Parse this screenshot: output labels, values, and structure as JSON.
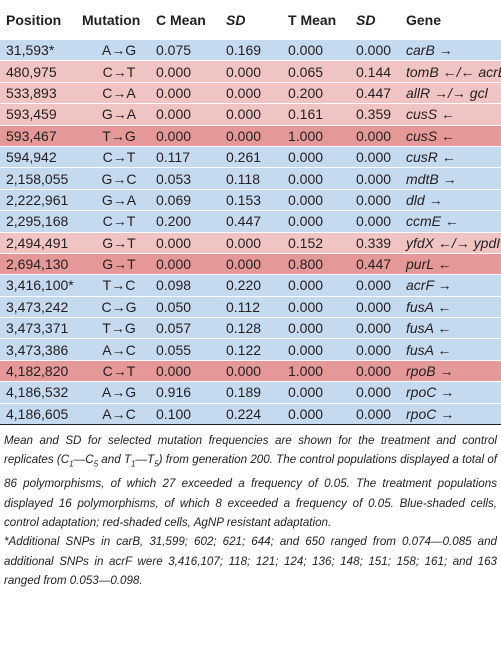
{
  "headers": [
    "Position",
    "Mutation",
    "C Mean",
    "SD",
    "T Mean",
    "SD",
    "Gene"
  ],
  "rows": [
    {
      "shade": "blue",
      "position": "31,593*",
      "mutation": "A→G",
      "c_mean": "0.075",
      "c_sd": "0.169",
      "t_mean": "0.000",
      "t_sd": "0.000",
      "gene": "carB →"
    },
    {
      "shade": "pink",
      "position": "480,975",
      "mutation": "C→T",
      "c_mean": "0.000",
      "c_sd": "0.000",
      "t_mean": "0.065",
      "t_sd": "0.144",
      "gene": "tomB ←/← acrB"
    },
    {
      "shade": "pink",
      "position": "533,893",
      "mutation": "C→A",
      "c_mean": "0.000",
      "c_sd": "0.000",
      "t_mean": "0.200",
      "t_sd": "0.447",
      "gene": "allR →/→ gcl"
    },
    {
      "shade": "pink",
      "position": "593,459",
      "mutation": "G→A",
      "c_mean": "0.000",
      "c_sd": "0.000",
      "t_mean": "0.161",
      "t_sd": "0.359",
      "gene": "cusS ←"
    },
    {
      "shade": "red",
      "position": "593,467",
      "mutation": "T→G",
      "c_mean": "0.000",
      "c_sd": "0.000",
      "t_mean": "1.000",
      "t_sd": "0.000",
      "gene": "cusS ←"
    },
    {
      "shade": "blue",
      "position": "594,942",
      "mutation": "C→T",
      "c_mean": "0.117",
      "c_sd": "0.261",
      "t_mean": "0.000",
      "t_sd": "0.000",
      "gene": "cusR ←"
    },
    {
      "shade": "blue",
      "position": "2,158,055",
      "mutation": "G→C",
      "c_mean": "0.053",
      "c_sd": "0.118",
      "t_mean": "0.000",
      "t_sd": "0.000",
      "gene": "mdtB →"
    },
    {
      "shade": "blue",
      "position": "2,222,961",
      "mutation": "G→A",
      "c_mean": "0.069",
      "c_sd": "0.153",
      "t_mean": "0.000",
      "t_sd": "0.000",
      "gene": "dld →"
    },
    {
      "shade": "blue",
      "position": "2,295,168",
      "mutation": "C→T",
      "c_mean": "0.200",
      "c_sd": "0.447",
      "t_mean": "0.000",
      "t_sd": "0.000",
      "gene": "ccmE ←"
    },
    {
      "shade": "pink",
      "position": "2,494,491",
      "mutation": "G→T",
      "c_mean": "0.000",
      "c_sd": "0.000",
      "t_mean": "0.152",
      "t_sd": "0.339",
      "gene": "yfdX ←/→ ypdI"
    },
    {
      "shade": "red",
      "position": "2,694,130",
      "mutation": "G→T",
      "c_mean": "0.000",
      "c_sd": "0.000",
      "t_mean": "0.800",
      "t_sd": "0.447",
      "gene": "purL ←"
    },
    {
      "shade": "blue",
      "position": "3,416,100*",
      "mutation": "T→C",
      "c_mean": "0.098",
      "c_sd": "0.220",
      "t_mean": "0.000",
      "t_sd": "0.000",
      "gene": "acrF →"
    },
    {
      "shade": "blue",
      "position": "3,473,242",
      "mutation": "C→G",
      "c_mean": "0.050",
      "c_sd": "0.112",
      "t_mean": "0.000",
      "t_sd": "0.000",
      "gene": "fusA ←"
    },
    {
      "shade": "blue",
      "position": "3,473,371",
      "mutation": "T→G",
      "c_mean": "0.057",
      "c_sd": "0.128",
      "t_mean": "0.000",
      "t_sd": "0.000",
      "gene": "fusA ←"
    },
    {
      "shade": "blue",
      "position": "3,473,386",
      "mutation": "A→C",
      "c_mean": "0.055",
      "c_sd": "0.122",
      "t_mean": "0.000",
      "t_sd": "0.000",
      "gene": "fusA ←"
    },
    {
      "shade": "red",
      "position": "4,182,820",
      "mutation": "C→T",
      "c_mean": "0.000",
      "c_sd": "0.000",
      "t_mean": "1.000",
      "t_sd": "0.000",
      "gene": "rpoB →"
    },
    {
      "shade": "blue",
      "position": "4,186,532",
      "mutation": "A→G",
      "c_mean": "0.916",
      "c_sd": "0.189",
      "t_mean": "0.000",
      "t_sd": "0.000",
      "gene": "rpoC →"
    },
    {
      "shade": "blue",
      "position": "4,186,605",
      "mutation": "A→C",
      "c_mean": "0.100",
      "c_sd": "0.224",
      "t_mean": "0.000",
      "t_sd": "0.000",
      "gene": "rpoC →"
    }
  ],
  "caption": {
    "p1": "Mean and SD for selected mutation frequencies are shown for the treatment and control replicates (",
    "c1": "C",
    "c1_sub": "1",
    "dash1": "—",
    "c5": "C",
    "c5_sub": "5",
    "and": " and ",
    "t1": "T",
    "t1_sub": "1",
    "dash2": "—",
    "t5": "T",
    "t5_sub": "5",
    "p2": ") from generation 200. The control populations displayed a total of 86 polymorphisms, of which 27 exceeded a frequency of 0.05. The treatment populations displayed 16 polymorphisms, of which 8 exceeded a frequency of 0.05. Blue-shaded cells, control adaptation; red-shaded cells, AgNP resistant adaptation."
  },
  "footnote": "*Additional SNPs in carB, 31,599; 602; 621; 644; and 650 ranged from 0.074—0.085 and additional SNPs in acrF were 3,416,107; 118; 121; 124; 136; 148; 151; 158; 161; and 163 ranged from 0.053—0.098."
}
